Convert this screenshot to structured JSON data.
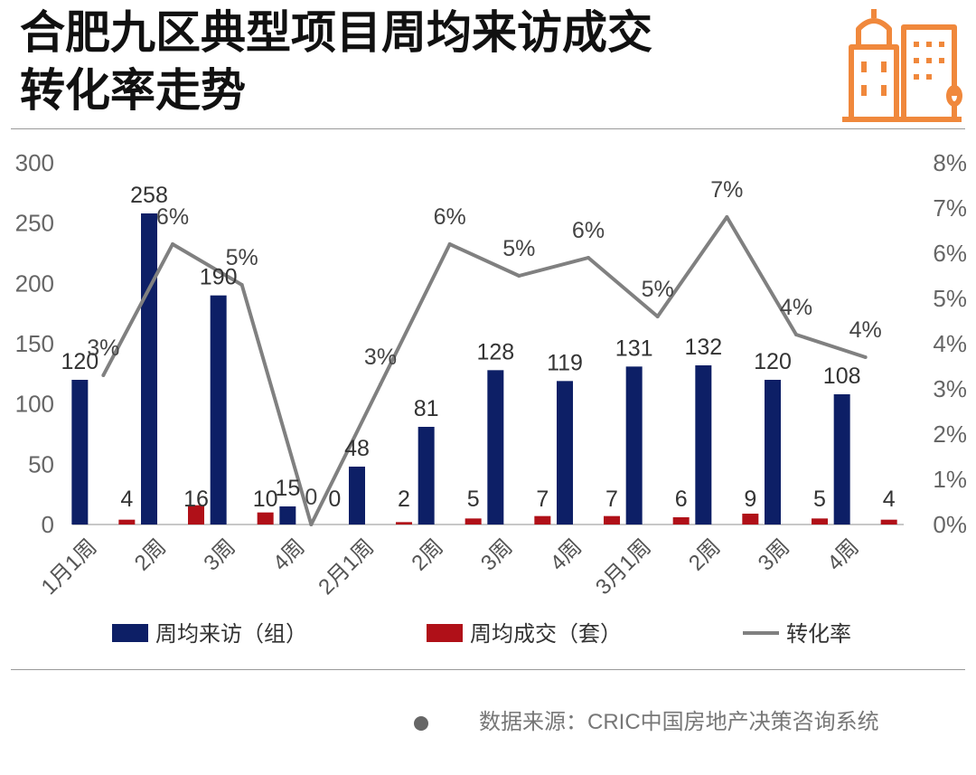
{
  "header": {
    "title_line1": "合肥九区典型项目周均来访成交",
    "title_line2": "转化率走势"
  },
  "source": "数据来源：CRIC中国房地产决策咨询系统",
  "colors": {
    "visits": "#0d1f66",
    "deals": "#b01018",
    "rate": "#808080",
    "logo": "#f0883c"
  },
  "chart_data": {
    "type": "bar",
    "categories": [
      "1月1周",
      "2周",
      "3周",
      "4周",
      "2月1周",
      "2周",
      "3周",
      "4周",
      "3月1周",
      "2周",
      "3周",
      "4周"
    ],
    "series": [
      {
        "name": "周均来访（组）",
        "type": "bar",
        "axis": "left",
        "values": [
          120,
          258,
          190,
          15,
          48,
          81,
          128,
          119,
          131,
          132,
          120,
          108
        ],
        "labels": [
          "120",
          "258",
          "190",
          "15",
          "48",
          "81",
          "128",
          "119",
          "131",
          "132",
          "120",
          "108"
        ]
      },
      {
        "name": "周均成交（套）",
        "type": "bar",
        "axis": "left",
        "values": [
          4,
          16,
          10,
          0,
          2,
          5,
          7,
          7,
          6,
          9,
          5,
          4
        ],
        "labels": [
          "4",
          "16",
          "10",
          "0",
          "2",
          "5",
          "7",
          "7",
          "6",
          "9",
          "5",
          "4"
        ]
      },
      {
        "name": "转化率",
        "type": "line",
        "axis": "right",
        "values": [
          3.3,
          6.2,
          5.3,
          0,
          3.1,
          6.2,
          5.5,
          5.9,
          4.6,
          6.8,
          4.2,
          3.7
        ],
        "labels": [
          "3%",
          "6%",
          "5%",
          "0",
          "3%",
          "6%",
          "5%",
          "6%",
          "5%",
          "7%",
          "4%",
          "4%"
        ]
      }
    ],
    "ylim": [
      0,
      300
    ],
    "yticks": [
      "0",
      "50",
      "100",
      "150",
      "200",
      "250",
      "300"
    ],
    "y2lim": [
      0,
      8
    ],
    "y2ticks": [
      "0%",
      "1%",
      "2%",
      "3%",
      "4%",
      "5%",
      "6%",
      "7%",
      "8%"
    ],
    "legend": "bottom",
    "grid": false
  }
}
